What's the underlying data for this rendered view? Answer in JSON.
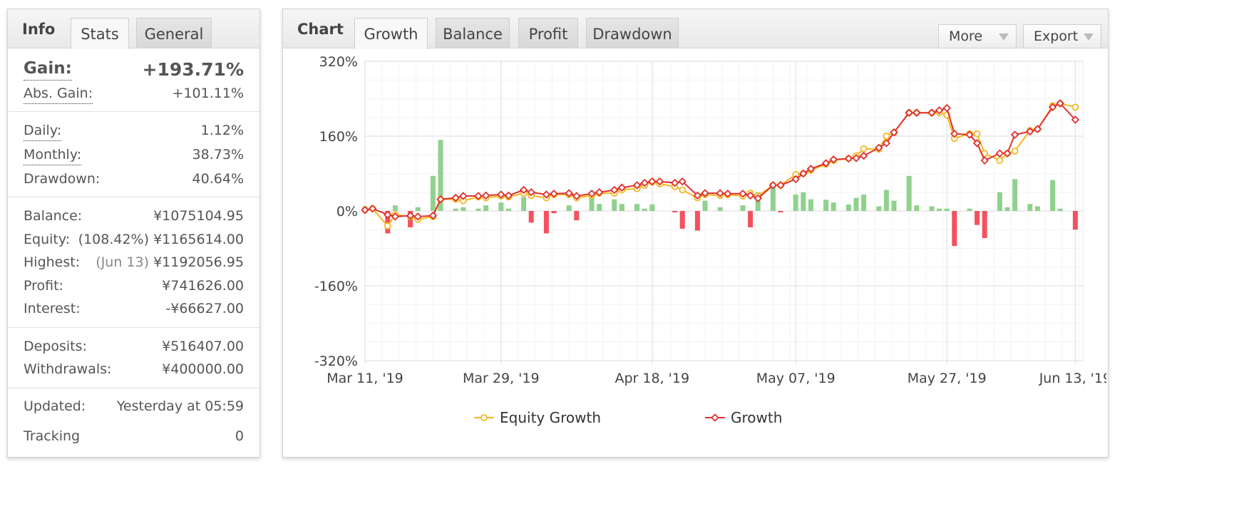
{
  "info_panel": {
    "title": "Info",
    "tabs": [
      "Stats",
      "General"
    ],
    "gain": {
      "label": "Gain:",
      "value": "+193.71%"
    },
    "abs_gain": {
      "label": "Abs. Gain:",
      "value": "+101.11%"
    },
    "daily": {
      "label": "Daily:",
      "value": "1.12%"
    },
    "monthly": {
      "label": "Monthly:",
      "value": "38.73%"
    },
    "drawdown": {
      "label": "Drawdown:",
      "value": "40.64%"
    },
    "balance": {
      "label": "Balance:",
      "value": "¥1075104.95"
    },
    "equity": {
      "label": "Equity:",
      "note": "(108.42%)",
      "value": "¥1165614.00"
    },
    "highest": {
      "label": "Highest:",
      "note": "(Jun 13)",
      "value": "¥1192056.95"
    },
    "profit": {
      "label": "Profit:",
      "value": "¥741626.00"
    },
    "interest": {
      "label": "Interest:",
      "value": "-¥66627.00"
    },
    "deposits": {
      "label": "Deposits:",
      "value": "¥516407.00"
    },
    "withdrawals": {
      "label": "Withdrawals:",
      "value": "¥400000.00"
    },
    "updated": {
      "label": "Updated:",
      "value": "Yesterday at 05:59"
    },
    "tracking": {
      "label": "Tracking",
      "value": "0"
    }
  },
  "chart_panel": {
    "title": "Chart",
    "tabs": [
      "Growth",
      "Balance",
      "Profit",
      "Drawdown"
    ],
    "active_tab": "Growth",
    "buttons": {
      "more": "More",
      "export": "Export"
    }
  },
  "colors": {
    "equity": "#f4b820",
    "growth": "#e0302e",
    "bar_pos": "#8fd18d",
    "bar_neg": "#f5505e",
    "gain_green": "#1f9c2d"
  },
  "chart_data": {
    "type": "line",
    "y_ticks": [
      "320%",
      "160%",
      "0%",
      "-160%",
      "-320%"
    ],
    "ylim": [
      -320,
      320
    ],
    "x_ticks": [
      "Mar 11, '19",
      "Mar 29, '19",
      "Apr 18, '19",
      "May 07, '19",
      "May 27, '19",
      "Jun 13, '19"
    ],
    "x_tick_days": [
      0,
      18,
      38,
      57,
      77,
      94
    ],
    "x_day_range": [
      0,
      95
    ],
    "grid": true,
    "legend_position": "bottom",
    "series": [
      {
        "name": "Equity Growth",
        "points": [
          [
            0,
            2
          ],
          [
            1,
            5
          ],
          [
            3,
            -32
          ],
          [
            4,
            -8
          ],
          [
            6,
            -12
          ],
          [
            7,
            -18
          ],
          [
            9,
            -12
          ],
          [
            10,
            25
          ],
          [
            12,
            25
          ],
          [
            13,
            22
          ],
          [
            15,
            30
          ],
          [
            16,
            28
          ],
          [
            18,
            32
          ],
          [
            19,
            30
          ],
          [
            21,
            38
          ],
          [
            22,
            33
          ],
          [
            24,
            28
          ],
          [
            25,
            35
          ],
          [
            27,
            35
          ],
          [
            28,
            28
          ],
          [
            30,
            33
          ],
          [
            31,
            38
          ],
          [
            33,
            38
          ],
          [
            34,
            45
          ],
          [
            36,
            48
          ],
          [
            37,
            55
          ],
          [
            38,
            62
          ],
          [
            39,
            58
          ],
          [
            41,
            52
          ],
          [
            42,
            45
          ],
          [
            44,
            28
          ],
          [
            45,
            35
          ],
          [
            47,
            33
          ],
          [
            48,
            35
          ],
          [
            50,
            32
          ],
          [
            51,
            38
          ],
          [
            52,
            32
          ],
          [
            54,
            55
          ],
          [
            55,
            55
          ],
          [
            57,
            78
          ],
          [
            58,
            80
          ],
          [
            59,
            87
          ],
          [
            61,
            100
          ],
          [
            62,
            108
          ],
          [
            64,
            112
          ],
          [
            65,
            118
          ],
          [
            66,
            133
          ],
          [
            68,
            132
          ],
          [
            69,
            160
          ],
          [
            70,
            168
          ],
          [
            72,
            210
          ],
          [
            73,
            210
          ],
          [
            75,
            210
          ],
          [
            76,
            210
          ],
          [
            77,
            205
          ],
          [
            78,
            155
          ],
          [
            80,
            165
          ],
          [
            81,
            165
          ],
          [
            82,
            123
          ],
          [
            84,
            108
          ],
          [
            85,
            123
          ],
          [
            86,
            128
          ],
          [
            88,
            172
          ],
          [
            89,
            175
          ],
          [
            91,
            225
          ],
          [
            92,
            230
          ],
          [
            94,
            222
          ]
        ]
      },
      {
        "name": "Growth",
        "points": [
          [
            0,
            2
          ],
          [
            1,
            5
          ],
          [
            3,
            -8
          ],
          [
            4,
            -12
          ],
          [
            6,
            -10
          ],
          [
            7,
            -12
          ],
          [
            9,
            -10
          ],
          [
            10,
            25
          ],
          [
            12,
            28
          ],
          [
            13,
            32
          ],
          [
            15,
            32
          ],
          [
            16,
            33
          ],
          [
            18,
            35
          ],
          [
            19,
            33
          ],
          [
            21,
            45
          ],
          [
            22,
            40
          ],
          [
            24,
            35
          ],
          [
            25,
            37
          ],
          [
            27,
            38
          ],
          [
            28,
            32
          ],
          [
            30,
            37
          ],
          [
            31,
            40
          ],
          [
            33,
            45
          ],
          [
            34,
            50
          ],
          [
            36,
            55
          ],
          [
            37,
            60
          ],
          [
            38,
            63
          ],
          [
            39,
            63
          ],
          [
            41,
            60
          ],
          [
            42,
            63
          ],
          [
            44,
            33
          ],
          [
            45,
            38
          ],
          [
            47,
            38
          ],
          [
            48,
            37
          ],
          [
            50,
            37
          ],
          [
            51,
            33
          ],
          [
            52,
            27
          ],
          [
            54,
            55
          ],
          [
            55,
            55
          ],
          [
            57,
            68
          ],
          [
            58,
            80
          ],
          [
            59,
            90
          ],
          [
            61,
            102
          ],
          [
            62,
            110
          ],
          [
            64,
            112
          ],
          [
            65,
            113
          ],
          [
            66,
            118
          ],
          [
            68,
            135
          ],
          [
            69,
            145
          ],
          [
            70,
            168
          ],
          [
            72,
            210
          ],
          [
            73,
            210
          ],
          [
            75,
            210
          ],
          [
            76,
            215
          ],
          [
            77,
            220
          ],
          [
            78,
            165
          ],
          [
            80,
            163
          ],
          [
            81,
            145
          ],
          [
            82,
            108
          ],
          [
            84,
            123
          ],
          [
            85,
            123
          ],
          [
            86,
            163
          ],
          [
            88,
            170
          ],
          [
            89,
            175
          ],
          [
            91,
            222
          ],
          [
            92,
            230
          ],
          [
            94,
            195
          ]
        ]
      },
      {
        "name": "bars",
        "type": "bar",
        "points": [
          [
            0,
            10
          ],
          [
            3,
            -48
          ],
          [
            4,
            12
          ],
          [
            6,
            -35
          ],
          [
            7,
            8
          ],
          [
            9,
            75
          ],
          [
            10,
            152
          ],
          [
            12,
            5
          ],
          [
            13,
            8
          ],
          [
            15,
            5
          ],
          [
            16,
            12
          ],
          [
            18,
            18
          ],
          [
            19,
            5
          ],
          [
            21,
            30
          ],
          [
            22,
            -25
          ],
          [
            24,
            -48
          ],
          [
            25,
            -5
          ],
          [
            27,
            12
          ],
          [
            28,
            -20
          ],
          [
            30,
            28
          ],
          [
            31,
            15
          ],
          [
            33,
            25
          ],
          [
            34,
            15
          ],
          [
            36,
            15
          ],
          [
            37,
            5
          ],
          [
            38,
            14
          ],
          [
            41,
            -3
          ],
          [
            42,
            -38
          ],
          [
            44,
            -42
          ],
          [
            45,
            22
          ],
          [
            47,
            8
          ],
          [
            50,
            12
          ],
          [
            51,
            -35
          ],
          [
            52,
            40
          ],
          [
            54,
            50
          ],
          [
            55,
            -3
          ],
          [
            57,
            35
          ],
          [
            58,
            40
          ],
          [
            59,
            25
          ],
          [
            61,
            24
          ],
          [
            62,
            18
          ],
          [
            64,
            14
          ],
          [
            65,
            28
          ],
          [
            66,
            35
          ],
          [
            68,
            10
          ],
          [
            69,
            45
          ],
          [
            70,
            22
          ],
          [
            72,
            75
          ],
          [
            73,
            12
          ],
          [
            75,
            10
          ],
          [
            76,
            5
          ],
          [
            77,
            5
          ],
          [
            78,
            -75
          ],
          [
            80,
            5
          ],
          [
            81,
            -30
          ],
          [
            82,
            -58
          ],
          [
            84,
            40
          ],
          [
            85,
            8
          ],
          [
            86,
            68
          ],
          [
            88,
            15
          ],
          [
            89,
            10
          ],
          [
            91,
            66
          ],
          [
            92,
            5
          ],
          [
            94,
            -40
          ]
        ]
      }
    ]
  }
}
